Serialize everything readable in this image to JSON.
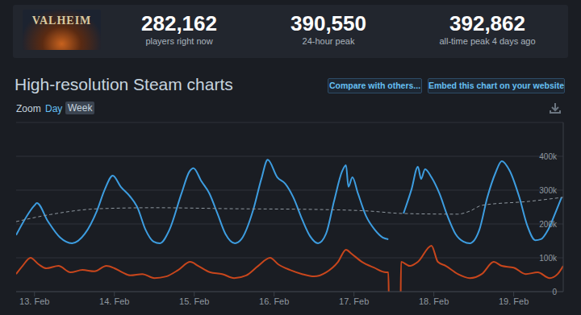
{
  "header": {
    "game_logo": "VALHEIM",
    "stats": [
      {
        "value": "282,162",
        "label": "players right now"
      },
      {
        "value": "390,550",
        "label": "24-hour peak"
      },
      {
        "value": "392,862",
        "label": "all-time peak 4 days ago"
      }
    ]
  },
  "toolbar": {
    "buttons": [
      "Compare with others...",
      "Embed this chart on your website"
    ],
    "zoom_label": "Zoom",
    "zoom_options": [
      "Day",
      "Week"
    ]
  },
  "chart_data": {
    "type": "line",
    "title": "High-resolution Steam charts",
    "xlim": [
      12.77,
      19.62
    ],
    "xticks": [
      {
        "value": 13,
        "label": "13. Feb"
      },
      {
        "value": 14,
        "label": "14. Feb"
      },
      {
        "value": 15,
        "label": "15. Feb"
      },
      {
        "value": 16,
        "label": "16. Feb"
      },
      {
        "value": 17,
        "label": "17. Feb"
      },
      {
        "value": 18,
        "label": "18. Feb"
      },
      {
        "value": 19,
        "label": "19. Feb"
      }
    ],
    "ylim": [
      0,
      500000
    ],
    "yticks": [
      0,
      {
        "value": 100000,
        "label": "100k"
      },
      {
        "value": 200000,
        "label": "200k"
      },
      {
        "value": 300000,
        "label": "300k"
      },
      {
        "value": 400000,
        "label": "400k"
      }
    ],
    "grid": true,
    "series": [
      {
        "color": "#3d9de0",
        "line_style": "solid",
        "x": [
          12.77,
          13.0,
          13.03,
          13.17,
          13.32,
          13.47,
          13.63,
          13.78,
          13.88,
          13.98,
          14.08,
          14.19,
          14.29,
          14.39,
          14.49,
          14.57,
          14.69,
          14.84,
          14.94,
          14.99,
          15.09,
          15.19,
          15.29,
          15.39,
          15.51,
          15.59,
          15.74,
          15.84,
          15.92,
          16.04,
          16.14,
          16.24,
          16.35,
          16.45,
          16.55,
          16.65,
          16.75,
          16.85,
          16.9,
          16.93,
          16.98,
          17.05,
          17.15,
          17.26,
          17.36,
          17.43,
          17.52,
          17.62,
          17.72,
          17.8,
          17.84,
          17.89,
          17.97,
          18.07,
          18.17,
          18.27,
          18.37,
          18.45,
          18.57,
          18.67,
          18.77,
          18.85,
          18.95,
          19.07,
          19.17,
          19.27,
          19.34,
          19.43,
          19.53,
          19.6
        ],
        "values": [
          167000,
          255000,
          262000,
          207000,
          160000,
          143000,
          171000,
          238000,
          302000,
          343000,
          310000,
          283000,
          248000,
          183000,
          148000,
          143000,
          183000,
          290000,
          355000,
          365000,
          326000,
          290000,
          231000,
          171000,
          143000,
          155000,
          243000,
          333000,
          390000,
          338000,
          319000,
          279000,
          214000,
          164000,
          143000,
          171000,
          267000,
          355000,
          374000,
          310000,
          338000,
          290000,
          224000,
          183000,
          160000,
          155000,
          null,
          231000,
          302000,
          369000,
          333000,
          362000,
          338000,
          290000,
          224000,
          171000,
          148000,
          143000,
          183000,
          279000,
          350000,
          386000,
          357000,
          279000,
          195000,
          152000,
          155000,
          183000,
          238000,
          279000
        ]
      },
      {
        "color": "#8f98a0",
        "line_style": "dashed",
        "x": [
          12.77,
          13.2,
          13.8,
          14.5,
          15.5,
          16.5,
          17.2,
          17.6,
          18.3,
          18.45,
          18.6,
          19.2,
          19.62
        ],
        "values": [
          207000,
          228000,
          245000,
          248000,
          245000,
          243000,
          238000,
          231000,
          229000,
          238000,
          255000,
          267000,
          279000
        ]
      },
      {
        "color": "#c8461c",
        "line_style": "solid",
        "x": [
          12.77,
          12.85,
          12.95,
          13.05,
          13.15,
          13.3,
          13.45,
          13.6,
          13.75,
          13.9,
          14.0,
          14.1,
          14.2,
          14.35,
          14.5,
          14.65,
          14.8,
          14.95,
          15.05,
          15.2,
          15.35,
          15.5,
          15.65,
          15.8,
          15.95,
          16.05,
          16.2,
          16.35,
          16.5,
          16.65,
          16.8,
          16.9,
          16.97,
          17.1,
          17.25,
          17.4,
          17.43,
          17.435,
          17.5,
          17.585,
          17.59,
          17.7,
          17.8,
          17.97,
          18.05,
          18.15,
          18.3,
          18.45,
          18.6,
          18.75,
          18.85,
          19.0,
          19.15,
          19.3,
          19.45,
          19.55,
          19.62
        ],
        "values": [
          52000,
          76000,
          100000,
          81000,
          69000,
          76000,
          57000,
          64000,
          60000,
          76000,
          69000,
          57000,
          48000,
          52000,
          40000,
          45000,
          64000,
          88000,
          76000,
          57000,
          52000,
          40000,
          48000,
          76000,
          100000,
          81000,
          64000,
          52000,
          45000,
          57000,
          88000,
          124000,
          112000,
          88000,
          71000,
          57000,
          57000,
          0,
          null,
          0,
          88000,
          76000,
          88000,
          136000,
          88000,
          76000,
          52000,
          40000,
          52000,
          88000,
          76000,
          71000,
          52000,
          57000,
          40000,
          52000,
          76000
        ]
      }
    ]
  }
}
